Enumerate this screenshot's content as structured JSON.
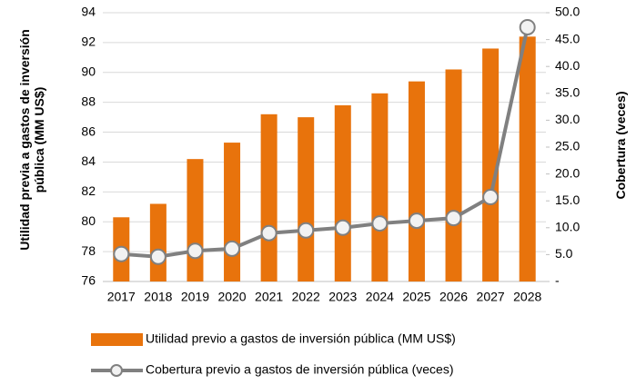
{
  "chart_data": {
    "type": "bar_line",
    "categories": [
      "2017",
      "2018",
      "2019",
      "2020",
      "2021",
      "2022",
      "2023",
      "2024",
      "2025",
      "2026",
      "2027",
      "2028"
    ],
    "series": [
      {
        "name": "Utilidad previo a gastos de inversión pública (MM US$)",
        "type": "bar",
        "color": "#e8730c",
        "values": [
          80.3,
          81.2,
          84.2,
          85.3,
          87.2,
          87.0,
          87.8,
          88.6,
          89.4,
          90.2,
          91.6,
          92.4
        ]
      },
      {
        "name": "Cobertura previo a gastos de inversión pública (veces)",
        "type": "line",
        "axis": "y2",
        "color": "#808080",
        "values": [
          5.1,
          4.6,
          5.7,
          6.1,
          9.0,
          9.5,
          10.0,
          10.8,
          11.3,
          11.8,
          15.7,
          47.3
        ]
      }
    ],
    "ylabel": "Utilidad previa a gastos de inversión pública (MM US$)",
    "y2label": "Cobertura (veces)",
    "ylim": [
      76,
      94
    ],
    "yticks": [
      76,
      78,
      80,
      82,
      84,
      86,
      88,
      90,
      92,
      94
    ],
    "y2lim": [
      0,
      50
    ],
    "y2ticks": [
      {
        "value": 0,
        "label": "-"
      },
      {
        "value": 5,
        "label": "5.0"
      },
      {
        "value": 10,
        "label": "10.0"
      },
      {
        "value": 15,
        "label": "15.0"
      },
      {
        "value": 20,
        "label": "20.0"
      },
      {
        "value": 25,
        "label": "25.0"
      },
      {
        "value": 30,
        "label": "30.0"
      },
      {
        "value": 35,
        "label": "35.0"
      },
      {
        "value": 40,
        "label": "40.0"
      },
      {
        "value": 45,
        "label": "45.0"
      },
      {
        "value": 50,
        "label": "50.0"
      }
    ],
    "grid": true
  }
}
